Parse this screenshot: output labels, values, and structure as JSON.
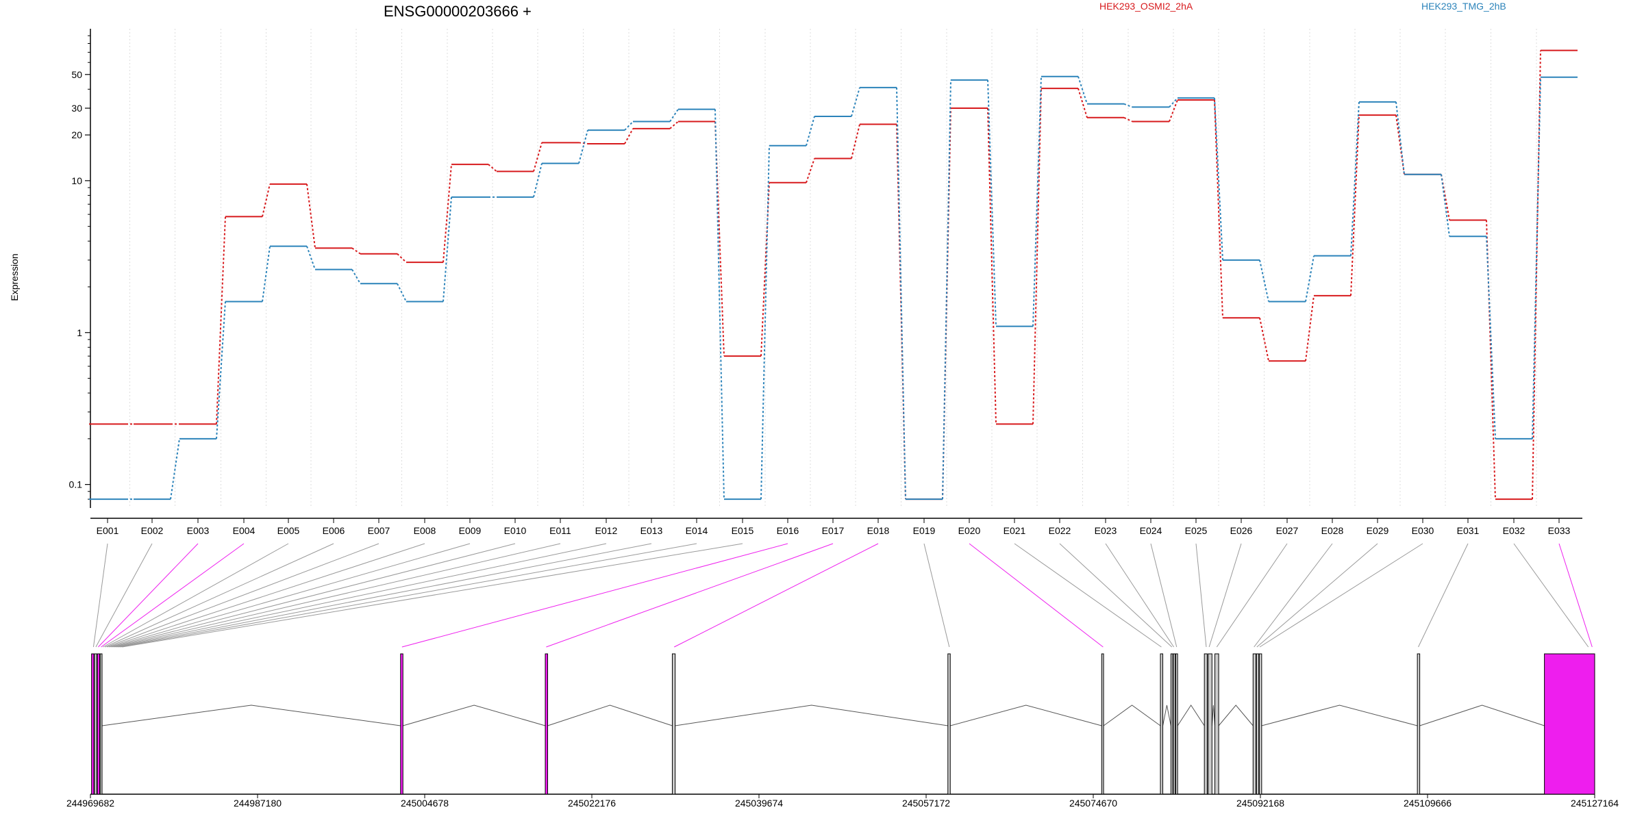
{
  "title": "ENSG00000203666 +",
  "ylabel": "Expression",
  "legend": [
    {
      "name": "HEK293_OSMI2_2hA",
      "color": "#d7191c"
    },
    {
      "name": "HEK293_TMG_2hB",
      "color": "#2b83ba"
    }
  ],
  "colors": {
    "exon_highlight": "#ee1eee",
    "link_gray": "#999999",
    "intron": "#555555",
    "grid": "#dddddd"
  },
  "chart_data": {
    "type": "line",
    "title": "ENSG00000203666 +",
    "ylabel": "Expression",
    "xlabel": "",
    "yscale": "log",
    "ylim": [
      0.07,
      100
    ],
    "yticks": [
      0.1,
      1,
      10,
      20,
      30,
      50
    ],
    "ytick_labels": [
      "0.1",
      "1",
      "10",
      "20",
      "30",
      "50"
    ],
    "categories": [
      "E001",
      "E002",
      "E003",
      "E004",
      "E005",
      "E006",
      "E007",
      "E008",
      "E009",
      "E010",
      "E011",
      "E012",
      "E013",
      "E014",
      "E015",
      "E016",
      "E017",
      "E018",
      "E019",
      "E020",
      "E021",
      "E022",
      "E023",
      "E024",
      "E025",
      "E026",
      "E027",
      "E028",
      "E029",
      "E030",
      "E031",
      "E032",
      "E033"
    ],
    "series": [
      {
        "name": "HEK293_OSMI2_2hA",
        "color": "#d7191c",
        "values": [
          0.25,
          0.25,
          0.25,
          5.8,
          9.5,
          3.6,
          3.3,
          2.9,
          12.8,
          11.5,
          17.8,
          17.5,
          22.0,
          24.5,
          0.7,
          9.7,
          14.0,
          23.5,
          0.08,
          30.0,
          0.25,
          40.5,
          26.0,
          24.5,
          34.0,
          1.25,
          0.65,
          1.75,
          27.0,
          11.0,
          5.5,
          0.08,
          72.0
        ]
      },
      {
        "name": "HEK293_TMG_2hB",
        "color": "#2b83ba",
        "values": [
          0.08,
          0.08,
          0.2,
          1.6,
          3.7,
          2.6,
          2.1,
          1.6,
          7.8,
          7.8,
          13.0,
          21.5,
          24.5,
          29.5,
          0.08,
          17.0,
          26.5,
          41.0,
          0.08,
          46.0,
          1.1,
          48.5,
          32.0,
          30.5,
          35.0,
          3.0,
          1.6,
          3.2,
          33.0,
          11.0,
          4.3,
          0.2,
          48.0
        ]
      }
    ],
    "genomic_axis": {
      "ticks": [
        "244969682",
        "244987180",
        "245004678",
        "245022176",
        "245039674",
        "245057172",
        "245074670",
        "245092168",
        "245109666",
        "245127164"
      ],
      "range": [
        244969682,
        245127164
      ]
    },
    "exon_highlighted": [
      false,
      false,
      true,
      true,
      false,
      false,
      false,
      false,
      false,
      false,
      false,
      false,
      false,
      false,
      false,
      true,
      true,
      true,
      false,
      true,
      false,
      false,
      false,
      false,
      false,
      false,
      false,
      false,
      false,
      false,
      false,
      false,
      true
    ],
    "exon_positions": [
      244970000,
      244970250,
      244970500,
      244970800,
      244971000,
      244971200,
      244971400,
      244971600,
      244971800,
      244972000,
      244972200,
      244972400,
      244972600,
      244972800,
      244973000,
      245002300,
      245017400,
      245030800,
      245059600,
      245075700,
      245081800,
      245082900,
      245083100,
      245083400,
      245086500,
      245086800,
      245087600,
      245091500,
      245091800,
      245092100,
      245108700,
      245126500,
      245126900
    ],
    "gene_exons": [
      {
        "start": 244969800,
        "end": 244970050,
        "highlight": true
      },
      {
        "start": 244970100,
        "end": 244970350,
        "highlight": false
      },
      {
        "start": 244970400,
        "end": 244970650,
        "highlight": true
      },
      {
        "start": 244970700,
        "end": 244970900,
        "highlight": false
      },
      {
        "start": 245002150,
        "end": 245002400,
        "highlight": true
      },
      {
        "start": 245017300,
        "end": 245017550,
        "highlight": true
      },
      {
        "start": 245030600,
        "end": 245030900,
        "highlight": false
      },
      {
        "start": 245059450,
        "end": 245059700,
        "highlight": false
      },
      {
        "start": 245075550,
        "end": 245075750,
        "highlight": false
      },
      {
        "start": 245081700,
        "end": 245081950,
        "highlight": false
      },
      {
        "start": 245082800,
        "end": 245083000,
        "highlight": false
      },
      {
        "start": 245083050,
        "end": 245083250,
        "highlight": false
      },
      {
        "start": 245083300,
        "end": 245083500,
        "highlight": false
      },
      {
        "start": 245086300,
        "end": 245086600,
        "highlight": false
      },
      {
        "start": 245086700,
        "end": 245087100,
        "highlight": false
      },
      {
        "start": 245087400,
        "end": 245087800,
        "highlight": false
      },
      {
        "start": 245091400,
        "end": 245091700,
        "highlight": false
      },
      {
        "start": 245091750,
        "end": 245092000,
        "highlight": false
      },
      {
        "start": 245092050,
        "end": 245092300,
        "highlight": false
      },
      {
        "start": 245108600,
        "end": 245108850,
        "highlight": false
      },
      {
        "start": 245121900,
        "end": 245127164,
        "highlight": true
      }
    ]
  }
}
